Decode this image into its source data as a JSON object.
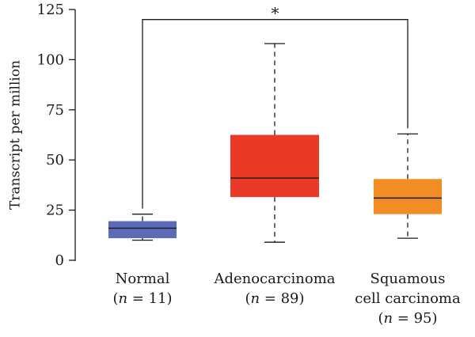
{
  "chart_data": {
    "type": "box",
    "ylabel": "Transcript per million",
    "ylim": [
      0,
      125
    ],
    "yticks": [
      0,
      25,
      50,
      75,
      100,
      125
    ],
    "grid": false,
    "categories": [
      {
        "label_lines": [
          "Normal"
        ],
        "n_label": "n",
        "n_value": "= 11)",
        "min": 10,
        "q1": 11,
        "median": 16,
        "q3": 19.5,
        "max": 23,
        "color": "#5b6bb8"
      },
      {
        "label_lines": [
          "Adenocarcinoma"
        ],
        "n_label": "n",
        "n_value": "= 89)",
        "min": 9,
        "q1": 31.5,
        "median": 41,
        "q3": 62.5,
        "max": 108,
        "color": "#ea3a27"
      },
      {
        "label_lines": [
          "Squamous",
          "cell carcinoma"
        ],
        "n_label": "n",
        "n_value": "= 95)",
        "min": 11,
        "q1": 23,
        "median": 31,
        "q3": 40.5,
        "max": 63,
        "color": "#f18d24"
      }
    ],
    "significance": {
      "label": "*",
      "from_category": 0,
      "to_category": 2,
      "y": 120
    }
  }
}
